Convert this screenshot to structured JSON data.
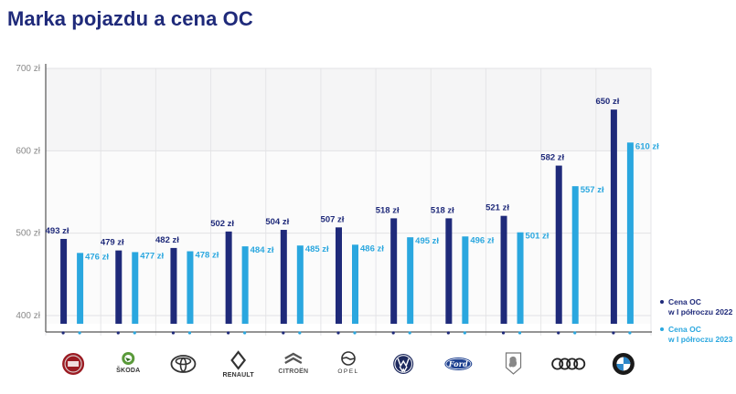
{
  "title": "Marka pojazdu a cena OC",
  "colors": {
    "series_2022": "#1f2a7a",
    "series_2023": "#2aa7df",
    "title": "#1f2a7a"
  },
  "legend": {
    "items": [
      {
        "line1": "Cena OC",
        "line2": "w I półroczu 2022",
        "color": "#1f2a7a"
      },
      {
        "line1": "Cena OC",
        "line2": "w I półroczu 2023",
        "color": "#2aa7df"
      }
    ]
  },
  "brands": [
    {
      "logo": "fiat-logo",
      "text": ""
    },
    {
      "logo": "skoda-logo",
      "text": "ŠKODA"
    },
    {
      "logo": "toyota-logo",
      "text": ""
    },
    {
      "logo": "renault-logo",
      "text": "RENAULT"
    },
    {
      "logo": "citroen-logo",
      "text": "CITROËN"
    },
    {
      "logo": "opel-logo",
      "text": "OPEL"
    },
    {
      "logo": "volkswagen-logo",
      "text": ""
    },
    {
      "logo": "ford-logo",
      "text": "Ford"
    },
    {
      "logo": "peugeot-logo",
      "text": ""
    },
    {
      "logo": "audi-logo",
      "text": ""
    },
    {
      "logo": "bmw-logo",
      "text": ""
    }
  ],
  "chart_data": {
    "type": "bar",
    "title": "Marka pojazdu a cena OC",
    "categories": [
      "Fiat",
      "Škoda",
      "Toyota",
      "Renault",
      "Citroën",
      "Opel",
      "Volkswagen",
      "Ford",
      "Peugeot",
      "Audi",
      "BMW"
    ],
    "series": [
      {
        "name": "Cena OC w I półroczu 2022",
        "values": [
          493,
          479,
          482,
          502,
          504,
          507,
          518,
          518,
          521,
          582,
          650
        ],
        "labels": [
          "493 zł",
          "479 zł",
          "482 zł",
          "502 zł",
          "504 zł",
          "507 zł",
          "518 zł",
          "518 zł",
          "521 zł",
          "582 zł",
          "650 zł"
        ]
      },
      {
        "name": "Cena OC w I półroczu 2023",
        "values": [
          476,
          477,
          478,
          484,
          485,
          486,
          495,
          496,
          501,
          557,
          610
        ],
        "labels": [
          "476 zł",
          "477 zł",
          "478 zł",
          "484 zł",
          "485 zł",
          "486 zł",
          "495 zł",
          "496 zł",
          "501 zł",
          "557 zł",
          "610 zł"
        ]
      }
    ],
    "ylim": [
      390,
      700
    ],
    "yticks": [
      400,
      500,
      600,
      700
    ],
    "ytick_labels": [
      "400 zł",
      "500 zł",
      "600 zł",
      "700 zł"
    ],
    "grid": true,
    "legend_position": "right"
  }
}
